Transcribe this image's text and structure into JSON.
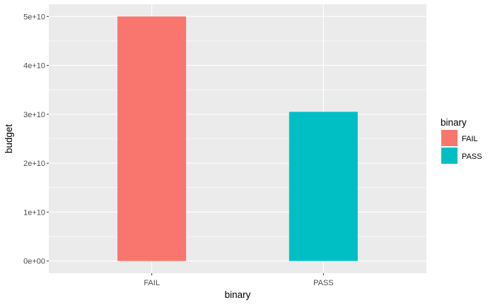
{
  "chart_data": {
    "type": "bar",
    "categories": [
      "FAIL",
      "PASS"
    ],
    "values": [
      50000000000,
      30500000000
    ],
    "xlabel": "binary",
    "ylabel": "budget",
    "ylim": [
      -2500000000,
      52500000000
    ],
    "yticks": [
      0,
      10000000000,
      20000000000,
      30000000000,
      40000000000,
      50000000000
    ],
    "ytick_labels": [
      "0e+00",
      "1e+10",
      "2e+10",
      "3e+10",
      "4e+10",
      "5e+10"
    ],
    "colors": [
      "#F8766D",
      "#00BFC4"
    ],
    "panel_background": "#EBEBEB",
    "grid": true,
    "legend": {
      "title": "binary",
      "position": "right",
      "items": [
        {
          "label": "FAIL",
          "color": "#F8766D"
        },
        {
          "label": "PASS",
          "color": "#00BFC4"
        }
      ]
    }
  }
}
